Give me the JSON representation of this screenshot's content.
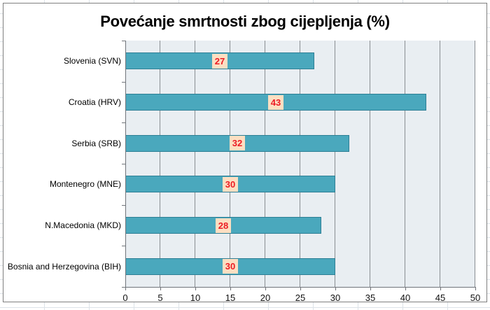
{
  "chart_data": {
    "type": "bar",
    "orientation": "horizontal",
    "title": "Povećanje smrtnosti zbog cijepljenja (%)",
    "categories": [
      "Slovenia (SVN)",
      "Croatia (HRV)",
      "Serbia (SRB)",
      "Montenegro (MNE)",
      "N.Macedonia (MKD)",
      "Bosnia and Herzegovina (BIH)"
    ],
    "values": [
      27,
      43,
      32,
      30,
      28,
      30
    ],
    "data_labels": [
      "27",
      "43",
      "32",
      "30",
      "28",
      "30"
    ],
    "data_label_position": "center",
    "xlabel": "",
    "ylabel": "",
    "xlim": [
      0,
      50
    ],
    "x_ticks": [
      0,
      5,
      10,
      15,
      20,
      25,
      30,
      35,
      40,
      45,
      50
    ],
    "grid": "vertical-major",
    "legend": "none"
  },
  "colors": {
    "bar_fill": "#4aa8bd",
    "bar_border": "#2d7f95",
    "plot_background": "#e9eef2",
    "gridline": "#8a8e92",
    "axis_line": "#70747a",
    "data_label_background": "#fcdfc2",
    "data_label_text": "#ec1c24",
    "title_text": "#000000",
    "chart_border": "#7f7f7f",
    "chart_background": "#ffffff",
    "sheet_gridline": "#dde3e8"
  }
}
